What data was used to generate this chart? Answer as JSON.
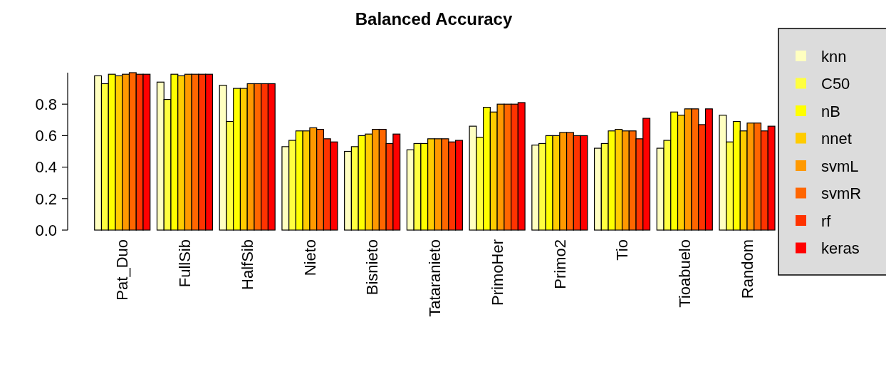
{
  "chart_data": {
    "type": "bar",
    "title": "Balanced Accuracy",
    "categories": [
      "Pat_Duo",
      "FullSib",
      "HalfSib",
      "Nieto",
      "Bisnieto",
      "Tataranieto",
      "PrimoHer",
      "Primo2",
      "Tio",
      "Tioabuelo",
      "Random"
    ],
    "series": [
      {
        "name": "knn",
        "color": "#ffffc0",
        "values": [
          0.98,
          0.94,
          0.92,
          0.53,
          0.5,
          0.51,
          0.66,
          0.54,
          0.52,
          0.52,
          0.73
        ]
      },
      {
        "name": "C50",
        "color": "#ffff40",
        "values": [
          0.93,
          0.83,
          0.69,
          0.57,
          0.53,
          0.55,
          0.59,
          0.55,
          0.55,
          0.57,
          0.56
        ]
      },
      {
        "name": "nB",
        "color": "#ffff00",
        "values": [
          0.99,
          0.99,
          0.9,
          0.63,
          0.6,
          0.55,
          0.78,
          0.6,
          0.63,
          0.75,
          0.69
        ]
      },
      {
        "name": "nnet",
        "color": "#ffcc00",
        "values": [
          0.98,
          0.98,
          0.9,
          0.63,
          0.61,
          0.58,
          0.75,
          0.6,
          0.64,
          0.73,
          0.63
        ]
      },
      {
        "name": "svmL",
        "color": "#ff9900",
        "values": [
          0.99,
          0.99,
          0.93,
          0.65,
          0.64,
          0.58,
          0.8,
          0.62,
          0.63,
          0.77,
          0.68
        ]
      },
      {
        "name": "svmR",
        "color": "#ff6600",
        "values": [
          1.0,
          0.99,
          0.93,
          0.64,
          0.64,
          0.58,
          0.8,
          0.62,
          0.63,
          0.77,
          0.68
        ]
      },
      {
        "name": "rf",
        "color": "#ff3300",
        "values": [
          0.99,
          0.99,
          0.93,
          0.58,
          0.55,
          0.56,
          0.8,
          0.6,
          0.58,
          0.67,
          0.63
        ]
      },
      {
        "name": "keras",
        "color": "#ff0000",
        "values": [
          0.99,
          0.99,
          0.93,
          0.56,
          0.61,
          0.57,
          0.81,
          0.6,
          0.71,
          0.77,
          0.66
        ]
      }
    ],
    "ylim": [
      0,
      1
    ],
    "yticks": [
      {
        "value": 0,
        "label": "0.0"
      },
      {
        "value": 0.2,
        "label": "0.2"
      },
      {
        "value": 0.4,
        "label": "0.4"
      },
      {
        "value": 0.6,
        "label": "0.6"
      },
      {
        "value": 0.8,
        "label": "0.8"
      }
    ],
    "legend": "right",
    "grid": false
  }
}
